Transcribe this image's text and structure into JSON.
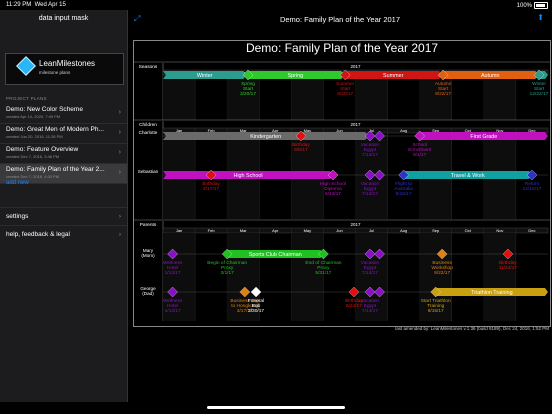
{
  "status_bar": {
    "time": "11:29 PM",
    "date": "Wed Apr 15",
    "battery": "100%"
  },
  "sidebar": {
    "title": "data input mask",
    "logo_name": "LeanMilestones",
    "logo_sub": "milestone plans",
    "section_header": "PROJECT PLANS",
    "plans": [
      {
        "title": "Demo: New Color Scheme",
        "created": "created Apr 14, 2020, 7:49 PM"
      },
      {
        "title": "Demo: Great Men of Modern Ph...",
        "created": "created Jun 20, 2016, 11:28 PM"
      },
      {
        "title": "Demo: Feature Overview",
        "created": "created Dec 7, 2016, 3:46 PM"
      },
      {
        "title": "Demo: Family Plan of the Year 2...",
        "created": "created Dec 7, 2016, 4:00 PM"
      }
    ],
    "add_new": "add new",
    "menu": [
      {
        "label": "settings"
      },
      {
        "label": "help, feedback & legal"
      }
    ]
  },
  "main": {
    "title": "Demo: Family Plan of the Year 2017",
    "credit": "last amended by: LeanMilestones v.1.36 (build 9189), Dec 24, 2016, 1:52 PM"
  },
  "chart_data": {
    "type": "timeline",
    "title": "Demo: Family Plan of the Year 2017",
    "year": "2017",
    "months": [
      "Jan",
      "Feb",
      "Mar",
      "Apr",
      "May",
      "Jun",
      "Jul",
      "Aug",
      "Sep",
      "Oct",
      "Nov",
      "Dec"
    ],
    "sections": [
      "Seasons",
      "Children",
      "Parents"
    ],
    "colors": {
      "winter": "#2a9d8f",
      "spring": "#2ec92a",
      "summer": "#d01515",
      "autumn": "#e06010",
      "kinder": "#6a6a6a",
      "purple": "#8a10c8",
      "magenta": "#c010c0",
      "teal": "#10a0a0",
      "blue": "#3030d0",
      "orange": "#e08010",
      "green": "#20c020",
      "red": "#e01010",
      "olive": "#c8a010",
      "white": "#ffffff"
    },
    "rows": [
      {
        "section": "Seasons",
        "label": "",
        "bars": [
          {
            "label": "Winter",
            "start": 1.0,
            "end": 3.6,
            "color": "winter"
          },
          {
            "label": "Spring",
            "start": 3.6,
            "end": 6.65,
            "color": "spring"
          },
          {
            "label": "Summer",
            "start": 6.65,
            "end": 9.7,
            "color": "summer"
          },
          {
            "label": "Autumn",
            "start": 9.7,
            "end": 12.7,
            "color": "autumn"
          },
          {
            "label": "",
            "start": 12.7,
            "end": 13.0,
            "color": "winter"
          }
        ],
        "milestones": [
          {
            "x": 3.65,
            "label": "Spring\nStart\n3/20/17",
            "color": "spring"
          },
          {
            "x": 6.68,
            "label": "Summer\nStart\n6/20/17",
            "color": "summer"
          },
          {
            "x": 9.73,
            "label": "Autumn\nStart\n9/22/17",
            "color": "autumn"
          },
          {
            "x": 12.72,
            "label": "Winter\nStart\n12/22/17",
            "color": "winter"
          }
        ]
      },
      {
        "section": "Children",
        "label": "Charlotte",
        "bars": [
          {
            "label": "Kindergarten",
            "start": 1.0,
            "end": 7.4,
            "color": "kinder"
          },
          {
            "label": "First Grade",
            "start": 9.0,
            "end": 13.0,
            "color": "magenta"
          }
        ],
        "milestones": [
          {
            "x": 5.3,
            "label": "Birthday\n5/6/17",
            "color": "red"
          },
          {
            "x": 7.45,
            "label": "Vacation\nEgypt\n7/14/17",
            "color": "purple"
          },
          {
            "x": 7.75,
            "label": "",
            "color": "purple"
          },
          {
            "x": 9.0,
            "label": "School\nEnrollment\n9/1/17",
            "color": "magenta"
          }
        ]
      },
      {
        "section": "Children",
        "label": "Sebastian",
        "bars": [
          {
            "label": "High School",
            "start": 1.0,
            "end": 6.3,
            "color": "magenta"
          },
          {
            "label": "Travel & Work",
            "start": 8.5,
            "end": 12.5,
            "color": "teal"
          }
        ],
        "milestones": [
          {
            "x": 2.5,
            "label": "Birthday\n2/17/17",
            "color": "red"
          },
          {
            "x": 6.3,
            "label": "High School\nDiploma\n6/13/17",
            "color": "magenta"
          },
          {
            "x": 7.45,
            "label": "Vacation\nEgypt\n7/14/17",
            "color": "purple"
          },
          {
            "x": 7.75,
            "label": "",
            "color": "purple"
          },
          {
            "x": 8.5,
            "label": "Flight to\nAustralia\n8/15/17",
            "color": "blue"
          },
          {
            "x": 12.5,
            "label": "Return\n12/15/17",
            "color": "blue"
          }
        ]
      },
      {
        "section": "Parents",
        "label": "Mary\n(Mom)",
        "bars": [
          {
            "label": "Sports Club Chairman",
            "start": 3.0,
            "end": 6.0,
            "color": "green"
          }
        ],
        "milestones": [
          {
            "x": 1.3,
            "label": "Wellness\nHotel\n1/13/17",
            "color": "purple"
          },
          {
            "x": 3.0,
            "label": "Begin of Chairman\nProxy\n3/1/17",
            "color": "green"
          },
          {
            "x": 6.0,
            "label": "End of Chairman\nProxy\n5/31/17",
            "color": "green"
          },
          {
            "x": 7.45,
            "label": "Vacation\nEgypt\n7/14/17",
            "color": "purple"
          },
          {
            "x": 7.75,
            "label": "",
            "color": "purple"
          },
          {
            "x": 9.7,
            "label": "Business\nWorkshop\n9/22/17",
            "color": "orange"
          },
          {
            "x": 11.75,
            "label": "Birthday\n11/24/17",
            "color": "red"
          }
        ]
      },
      {
        "section": "Parents",
        "label": "George\n(Dad)",
        "bars": [
          {
            "label": "Triathlon Training",
            "start": 9.5,
            "end": 13.0,
            "color": "olive"
          }
        ],
        "milestones": [
          {
            "x": 1.3,
            "label": "Wellness\nHotel\n1/13/17",
            "color": "purple"
          },
          {
            "x": 3.55,
            "label": "Business Trip\nto Hongkong\n3/17/17",
            "color": "orange"
          },
          {
            "x": 3.9,
            "label": "Funeral\nBob\n3/30/17",
            "color": "white"
          },
          {
            "x": 6.95,
            "label": "Birthday\n6/24/17",
            "color": "red"
          },
          {
            "x": 7.45,
            "label": "Vacation\nEgypt\n7/14/17",
            "color": "purple"
          },
          {
            "x": 7.75,
            "label": "",
            "color": "purple"
          },
          {
            "x": 9.5,
            "label": "Start Triathlon\nTraining\n9/15/17",
            "color": "olive"
          }
        ]
      }
    ]
  }
}
